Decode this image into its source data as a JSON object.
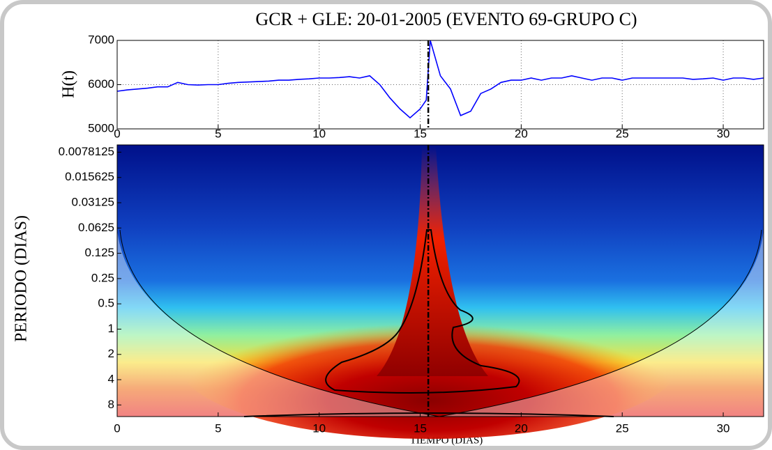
{
  "chart_data": [
    {
      "type": "line",
      "title": "GCR + GLE: 20-01-2005 (EVENTO 69-GRUPO C)",
      "ylabel": "H(t)",
      "x": [
        0,
        0.5,
        1,
        1.5,
        2,
        2.5,
        3,
        3.5,
        4,
        4.5,
        5,
        5.5,
        6,
        6.5,
        7,
        7.5,
        8,
        8.5,
        9,
        9.5,
        10,
        10.5,
        11,
        11.5,
        12,
        12.5,
        13,
        13.5,
        14,
        14.5,
        15,
        15.3,
        15.5,
        16,
        16.5,
        17,
        17.5,
        18,
        18.5,
        19,
        19.5,
        20,
        20.5,
        21,
        21.5,
        22,
        22.5,
        23,
        23.5,
        24,
        24.5,
        25,
        25.5,
        26,
        26.5,
        27,
        27.5,
        28,
        28.5,
        29,
        29.5,
        30,
        30.5,
        31,
        31.5,
        32
      ],
      "series": [
        {
          "name": "H(t)",
          "color": "#0000ff",
          "values": [
            5850,
            5880,
            5900,
            5920,
            5950,
            5950,
            6050,
            6000,
            5990,
            6000,
            6000,
            6030,
            6050,
            6060,
            6070,
            6080,
            6100,
            6100,
            6120,
            6130,
            6150,
            6150,
            6160,
            6180,
            6150,
            6200,
            6000,
            5700,
            5450,
            5250,
            5450,
            5650,
            7000,
            6200,
            5900,
            5300,
            5400,
            5800,
            5900,
            6050,
            6100,
            6100,
            6150,
            6100,
            6150,
            6150,
            6200,
            6150,
            6100,
            6150,
            6150,
            6100,
            6150,
            6150,
            6150,
            6150,
            6150,
            6150,
            6120,
            6130,
            6150,
            6100,
            6150,
            6150,
            6120,
            6150
          ]
        }
      ],
      "xlim": [
        0,
        32
      ],
      "xticks": [
        0,
        5,
        10,
        15,
        20,
        25,
        30
      ],
      "ylim": [
        5000,
        7000
      ],
      "yticks": [
        5000,
        6000,
        7000
      ],
      "grid": true,
      "event_line_x": 15.4
    },
    {
      "type": "wavelet",
      "xlabel": "TIEMPO (DIAS)",
      "ylabel": "PERIODO (DIAS)",
      "xlim": [
        0,
        32
      ],
      "xticks": [
        0,
        5,
        10,
        15,
        20,
        25,
        30
      ],
      "ylim": [
        0.0064,
        11
      ],
      "yscale": "log2",
      "y_reversed": true,
      "yticks": [
        0.0078125,
        0.015625,
        0.03125,
        0.0625,
        0.125,
        0.25,
        0.5,
        1,
        2,
        4,
        8
      ],
      "grid": false,
      "event_line_x": 15.4
    }
  ]
}
